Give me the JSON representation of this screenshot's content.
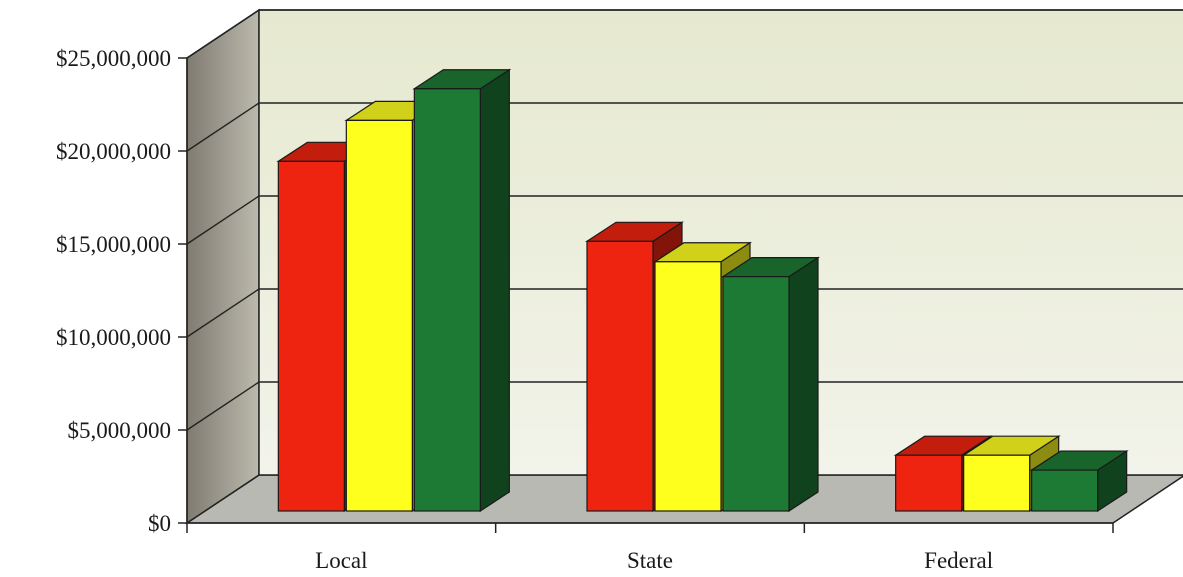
{
  "chart_data": {
    "type": "bar",
    "style": "3d-clustered",
    "categories": [
      "Local",
      "State",
      "Federal"
    ],
    "series": [
      {
        "color": "#ee2410",
        "values": [
          18800000,
          14500000,
          3000000
        ]
      },
      {
        "color": "#ffff1e",
        "values": [
          21000000,
          13400000,
          3000000
        ]
      },
      {
        "color": "#1d7a34",
        "values": [
          22700000,
          12600000,
          2200000
        ]
      }
    ],
    "y_ticks": [
      "$0",
      "$5,000,000",
      "$10,000,000",
      "$15,000,000",
      "$20,000,000",
      "$25,000,000"
    ],
    "ylim": [
      0,
      25000000
    ],
    "grid": true,
    "legend": "none",
    "colors": {
      "back_wall": "#e8ead5",
      "side_wall": "#a8a59a",
      "floor": "#b9b9b3"
    }
  }
}
